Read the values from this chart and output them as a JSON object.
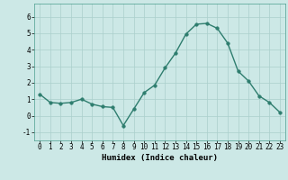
{
  "x": [
    0,
    1,
    2,
    3,
    4,
    5,
    6,
    7,
    8,
    9,
    10,
    11,
    12,
    13,
    14,
    15,
    16,
    17,
    18,
    19,
    20,
    21,
    22,
    23
  ],
  "y": [
    1.3,
    0.8,
    0.75,
    0.8,
    1.0,
    0.7,
    0.55,
    0.5,
    -0.6,
    0.4,
    1.4,
    1.85,
    2.9,
    3.8,
    4.95,
    5.55,
    5.6,
    5.3,
    4.4,
    2.7,
    2.1,
    1.2,
    0.8,
    0.2
  ],
  "line_color": "#2e7d6e",
  "marker_color": "#2e7d6e",
  "bg_color": "#cce8e6",
  "grid_color": "#aacfcc",
  "xlabel": "Humidex (Indice chaleur)",
  "ylim": [
    -1.5,
    6.8
  ],
  "xlim": [
    -0.5,
    23.5
  ],
  "yticks": [
    -1,
    0,
    1,
    2,
    3,
    4,
    5,
    6
  ],
  "xticks": [
    0,
    1,
    2,
    3,
    4,
    5,
    6,
    7,
    8,
    9,
    10,
    11,
    12,
    13,
    14,
    15,
    16,
    17,
    18,
    19,
    20,
    21,
    22,
    23
  ],
  "xlabel_fontsize": 6.5,
  "tick_fontsize": 5.5,
  "line_width": 1.0,
  "marker_size": 2.5
}
